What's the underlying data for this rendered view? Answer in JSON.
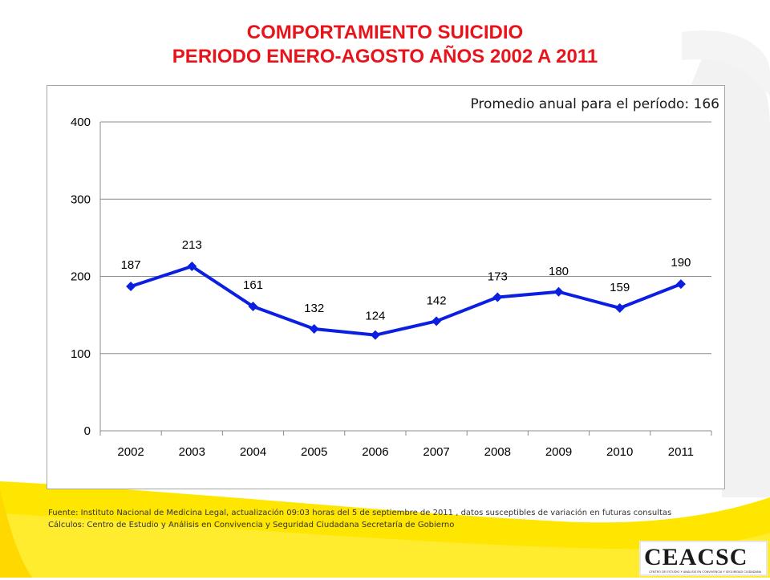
{
  "title": {
    "line1": "COMPORTAMIENTO SUICIDIO",
    "line2": "PERIODO ENERO-AGOSTO AÑOS 2002 A 2011"
  },
  "chart_data": {
    "type": "line",
    "categories": [
      "2002",
      "2003",
      "2004",
      "2005",
      "2006",
      "2007",
      "2008",
      "2009",
      "2010",
      "2011"
    ],
    "series": [
      {
        "values": [
          187,
          213,
          161,
          132,
          124,
          142,
          173,
          180,
          159,
          190
        ],
        "color": "#0a1fe0"
      }
    ],
    "ylim": [
      0,
      400
    ],
    "yticks": [
      0,
      100,
      200,
      300,
      400
    ],
    "annotation": "Promedio anual para el período: 166",
    "grid": true,
    "data_labels": true
  },
  "footer": {
    "source": "Fuente: Instituto Nacional de Medicina Legal, actualización  09:03 horas del 5 de  septiembre de 2011 , datos susceptibles de variación en futuras consultas",
    "calc": "Cálculos: Centro de Estudio y Análisis en Convivencia y Seguridad Ciudadana Secretaría de Gobierno"
  },
  "logo": {
    "text": "CEACSC",
    "tagline": "CENTRO DE ESTUDIO Y ANÁLISIS EN CONVIVENCIA Y SEGURIDAD CIUDADANA"
  },
  "colors": {
    "accent_yellow": "#ffe600",
    "title_red": "#e8141c",
    "line_blue": "#0a1fe0"
  }
}
